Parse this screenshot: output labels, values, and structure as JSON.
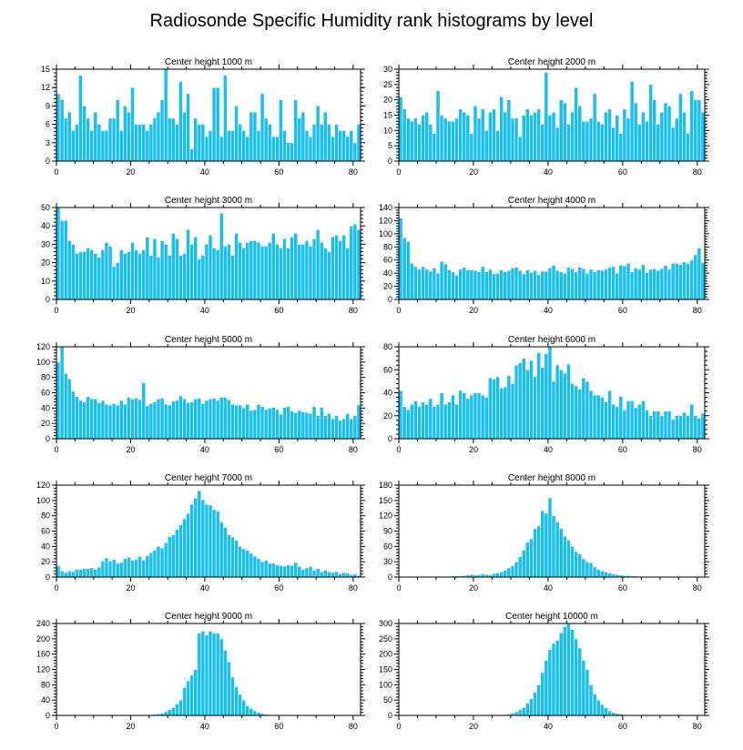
{
  "figure_title": "Radiosonde Specific Humidity rank histograms by level",
  "colors": {
    "bar": "#19bff0",
    "axis": "#000000",
    "background": "#ffffff"
  },
  "chart_data": [
    {
      "type": "bar",
      "title": "Center height 1000 m",
      "xlim": [
        0,
        82
      ],
      "ylim": [
        0,
        15
      ],
      "xticks": [
        0,
        20,
        40,
        60,
        80
      ],
      "yticks": [
        0,
        3,
        6,
        9,
        12,
        15
      ],
      "x_start": 0,
      "values": [
        11,
        10,
        7,
        8,
        5,
        6,
        14,
        9,
        7,
        5,
        8,
        6,
        5,
        5,
        7,
        7,
        10,
        5,
        9,
        8,
        12,
        6,
        6,
        6,
        5,
        6,
        7,
        8,
        10,
        15,
        7,
        7,
        6,
        13,
        8,
        11,
        2,
        7,
        6,
        6,
        4,
        5,
        12,
        12,
        4,
        14,
        5,
        5,
        9,
        6,
        5,
        4,
        8,
        8,
        5,
        11,
        7,
        6,
        4,
        4,
        10,
        5,
        3,
        3,
        10,
        7,
        8,
        5,
        4,
        6,
        9,
        6,
        8,
        6,
        4,
        6,
        5,
        5,
        4,
        5,
        3,
        6
      ]
    },
    {
      "type": "bar",
      "title": "Center height 2000 m",
      "xlim": [
        0,
        82
      ],
      "ylim": [
        0,
        30
      ],
      "xticks": [
        0,
        20,
        40,
        60,
        80
      ],
      "yticks": [
        0,
        5,
        10,
        15,
        20,
        25,
        30
      ],
      "x_start": 0,
      "values": [
        21,
        17,
        14,
        13,
        14,
        12,
        15,
        16,
        12,
        9,
        23,
        15,
        14,
        13,
        13,
        14,
        17,
        16,
        15,
        9,
        18,
        14,
        17,
        10,
        16,
        17,
        10,
        21,
        16,
        20,
        14,
        14,
        8,
        15,
        17,
        15,
        16,
        17,
        12,
        29,
        15,
        16,
        11,
        20,
        19,
        12,
        16,
        24,
        18,
        13,
        13,
        14,
        22,
        13,
        12,
        16,
        17,
        11,
        15,
        9,
        17,
        14,
        26,
        19,
        12,
        16,
        13,
        25,
        20,
        12,
        16,
        19,
        18,
        11,
        14,
        22,
        16,
        9,
        23,
        20,
        20,
        16
      ]
    },
    {
      "type": "bar",
      "title": "Center height 3000 m",
      "xlim": [
        0,
        82
      ],
      "ylim": [
        0,
        50
      ],
      "xticks": [
        0,
        20,
        40,
        60,
        80
      ],
      "yticks": [
        0,
        10,
        20,
        30,
        40,
        50
      ],
      "x_start": 0,
      "values": [
        50,
        43,
        43,
        32,
        30,
        25,
        26,
        26,
        28,
        27,
        25,
        23,
        27,
        31,
        29,
        18,
        20,
        27,
        25,
        26,
        31,
        27,
        25,
        27,
        34,
        24,
        33,
        23,
        32,
        30,
        24,
        36,
        33,
        24,
        25,
        38,
        30,
        34,
        22,
        24,
        30,
        35,
        28,
        27,
        47,
        29,
        30,
        24,
        36,
        31,
        28,
        31,
        32,
        32,
        31,
        29,
        29,
        31,
        36,
        30,
        28,
        33,
        28,
        34,
        36,
        30,
        30,
        32,
        29,
        33,
        38,
        31,
        28,
        26,
        34,
        35,
        32,
        35,
        28,
        40,
        41,
        38
      ]
    },
    {
      "type": "bar",
      "title": "Center height 4000 m",
      "xlim": [
        0,
        82
      ],
      "ylim": [
        0,
        140
      ],
      "xticks": [
        0,
        20,
        40,
        60,
        80
      ],
      "yticks": [
        0,
        20,
        40,
        60,
        80,
        100,
        120,
        140
      ],
      "x_start": 0,
      "values": [
        124,
        94,
        88,
        55,
        50,
        46,
        50,
        46,
        43,
        48,
        40,
        58,
        54,
        45,
        42,
        37,
        46,
        49,
        45,
        45,
        44,
        42,
        50,
        42,
        46,
        39,
        40,
        45,
        42,
        44,
        48,
        49,
        44,
        39,
        45,
        41,
        44,
        38,
        43,
        43,
        48,
        52,
        44,
        42,
        40,
        49,
        47,
        42,
        49,
        47,
        40,
        46,
        42,
        45,
        44,
        46,
        49,
        50,
        40,
        52,
        51,
        55,
        42,
        48,
        46,
        53,
        41,
        46,
        47,
        44,
        47,
        52,
        46,
        55,
        55,
        53,
        57,
        55,
        60,
        68,
        78,
        56
      ]
    },
    {
      "type": "bar",
      "title": "Center height 5000 m",
      "xlim": [
        0,
        82
      ],
      "ylim": [
        0,
        120
      ],
      "xticks": [
        0,
        20,
        40,
        60,
        80
      ],
      "yticks": [
        0,
        20,
        40,
        60,
        80,
        100,
        120
      ],
      "x_start": 0,
      "values": [
        100,
        120,
        85,
        78,
        62,
        55,
        50,
        48,
        55,
        52,
        52,
        47,
        50,
        45,
        44,
        46,
        44,
        50,
        45,
        54,
        52,
        53,
        51,
        73,
        43,
        46,
        48,
        52,
        53,
        45,
        44,
        49,
        50,
        56,
        52,
        47,
        48,
        52,
        53,
        46,
        50,
        52,
        53,
        50,
        54,
        54,
        51,
        45,
        44,
        44,
        40,
        45,
        37,
        38,
        45,
        42,
        38,
        40,
        41,
        38,
        32,
        41,
        42,
        36,
        34,
        37,
        35,
        34,
        33,
        42,
        30,
        41,
        30,
        33,
        26,
        30,
        24,
        26,
        33,
        26,
        30,
        44
      ]
    },
    {
      "type": "bar",
      "title": "Center height 6000 m",
      "xlim": [
        0,
        82
      ],
      "ylim": [
        0,
        80
      ],
      "xticks": [
        0,
        20,
        40,
        60,
        80
      ],
      "yticks": [
        0,
        20,
        40,
        60,
        80
      ],
      "x_start": 0,
      "values": [
        42,
        28,
        25,
        30,
        33,
        28,
        32,
        30,
        35,
        28,
        30,
        40,
        30,
        32,
        38,
        30,
        42,
        40,
        35,
        38,
        40,
        40,
        38,
        36,
        53,
        52,
        54,
        44,
        45,
        55,
        48,
        64,
        66,
        70,
        60,
        68,
        54,
        75,
        62,
        74,
        80,
        50,
        64,
        60,
        57,
        65,
        48,
        46,
        43,
        53,
        50,
        42,
        38,
        38,
        36,
        32,
        42,
        30,
        28,
        37,
        25,
        33,
        33,
        27,
        30,
        33,
        25,
        20,
        24,
        24,
        20,
        24,
        24,
        17,
        20,
        20,
        23,
        20,
        30,
        20,
        18,
        22
      ]
    },
    {
      "type": "bar",
      "title": "Center height 7000 m",
      "xlim": [
        0,
        82
      ],
      "ylim": [
        0,
        120
      ],
      "xticks": [
        0,
        20,
        40,
        60,
        80
      ],
      "yticks": [
        0,
        20,
        40,
        60,
        80,
        100,
        120
      ],
      "x_start": 0,
      "values": [
        15,
        8,
        6,
        8,
        7,
        10,
        10,
        11,
        11,
        12,
        10,
        13,
        21,
        25,
        21,
        23,
        18,
        19,
        24,
        26,
        22,
        23,
        27,
        22,
        28,
        32,
        35,
        40,
        38,
        45,
        53,
        55,
        62,
        68,
        76,
        83,
        95,
        103,
        113,
        101,
        95,
        94,
        88,
        86,
        72,
        65,
        55,
        52,
        48,
        40,
        37,
        35,
        31,
        27,
        24,
        20,
        22,
        18,
        18,
        16,
        15,
        14,
        16,
        15,
        19,
        14,
        10,
        12,
        14,
        9,
        11,
        7,
        9,
        7,
        6,
        7,
        4,
        6,
        5,
        3,
        4,
        2
      ]
    },
    {
      "type": "bar",
      "title": "Center height 8000 m",
      "xlim": [
        0,
        82
      ],
      "ylim": [
        0,
        180
      ],
      "xticks": [
        0,
        20,
        40,
        60,
        80
      ],
      "yticks": [
        0,
        30,
        60,
        90,
        120,
        150,
        180
      ],
      "x_start": 0,
      "values": [
        0,
        0,
        0,
        0,
        0,
        0,
        0,
        0,
        0,
        0,
        0,
        0,
        1,
        1,
        2,
        2,
        2,
        3,
        4,
        5,
        4,
        4,
        6,
        5,
        4,
        7,
        8,
        10,
        13,
        18,
        22,
        30,
        40,
        53,
        68,
        75,
        95,
        100,
        130,
        125,
        155,
        120,
        108,
        95,
        80,
        72,
        60,
        50,
        45,
        36,
        30,
        28,
        20,
        15,
        12,
        10,
        8,
        6,
        5,
        4,
        3,
        3,
        2,
        2,
        1,
        1,
        1,
        1,
        1,
        0,
        0,
        0,
        0,
        0,
        0,
        0,
        0,
        0,
        0,
        0,
        0,
        0
      ]
    },
    {
      "type": "bar",
      "title": "Center height 9000 m",
      "xlim": [
        0,
        82
      ],
      "ylim": [
        0,
        240
      ],
      "xticks": [
        0,
        20,
        40,
        60,
        80
      ],
      "yticks": [
        0,
        40,
        80,
        120,
        160,
        200,
        240
      ],
      "x_start": 0,
      "values": [
        0,
        0,
        0,
        0,
        0,
        0,
        0,
        0,
        0,
        0,
        0,
        0,
        0,
        0,
        0,
        0,
        0,
        0,
        0,
        0,
        0,
        0,
        0,
        0,
        1,
        2,
        3,
        4,
        6,
        10,
        15,
        20,
        30,
        40,
        73,
        90,
        105,
        120,
        215,
        220,
        210,
        220,
        215,
        215,
        200,
        170,
        140,
        100,
        75,
        55,
        40,
        25,
        18,
        12,
        8,
        5,
        3,
        2,
        1,
        1,
        0,
        0,
        0,
        0,
        0,
        0,
        0,
        0,
        0,
        0,
        0,
        0,
        0,
        0,
        0,
        0,
        0,
        0,
        0,
        0,
        0,
        0
      ]
    },
    {
      "type": "bar",
      "title": "Center height 10000 m",
      "xlim": [
        0,
        82
      ],
      "ylim": [
        0,
        300
      ],
      "xticks": [
        0,
        20,
        40,
        60,
        80
      ],
      "yticks": [
        0,
        50,
        100,
        150,
        200,
        250,
        300
      ],
      "x_start": 0,
      "values": [
        0,
        0,
        0,
        0,
        0,
        0,
        0,
        0,
        0,
        0,
        0,
        0,
        0,
        0,
        0,
        0,
        0,
        0,
        0,
        0,
        0,
        0,
        0,
        0,
        0,
        0,
        1,
        1,
        2,
        4,
        8,
        12,
        18,
        25,
        40,
        55,
        75,
        100,
        140,
        180,
        215,
        235,
        245,
        270,
        290,
        300,
        280,
        250,
        220,
        180,
        150,
        100,
        70,
        50,
        35,
        25,
        15,
        10,
        6,
        4,
        2,
        2,
        1,
        1,
        0,
        0,
        0,
        0,
        0,
        0,
        0,
        0,
        0,
        0,
        0,
        0,
        0,
        0,
        0,
        0,
        0,
        0
      ]
    }
  ]
}
